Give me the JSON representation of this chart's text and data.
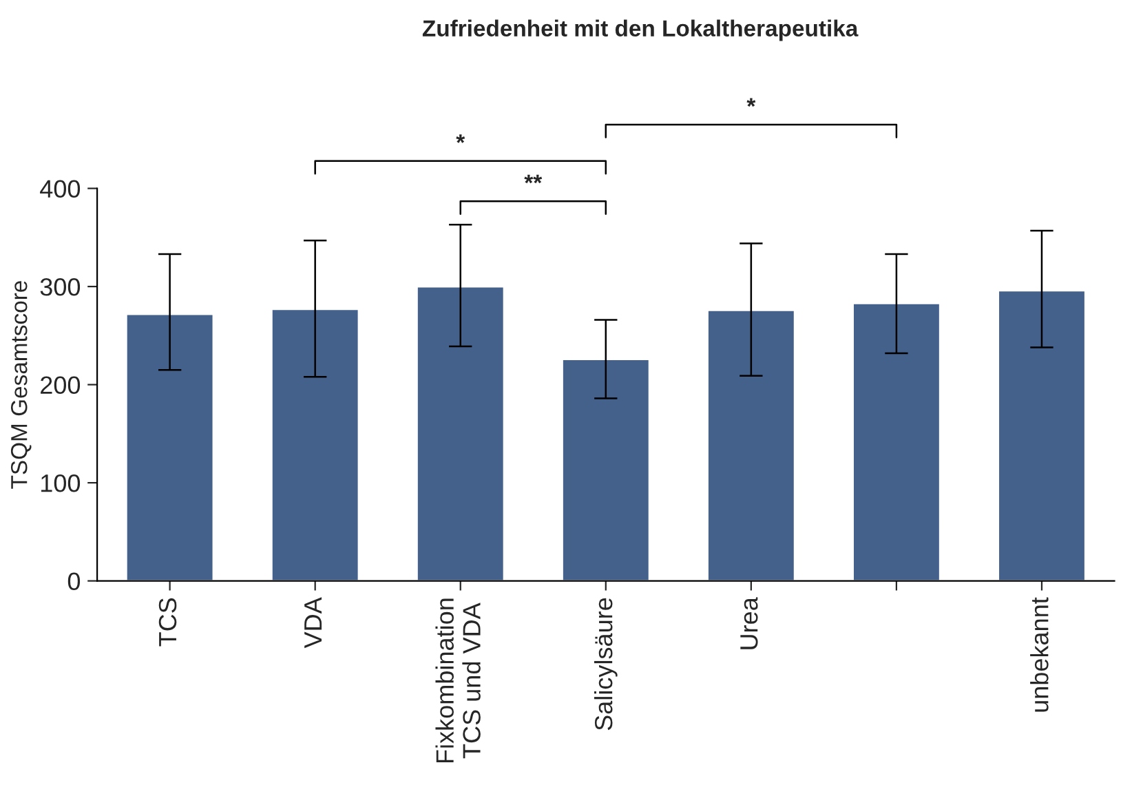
{
  "chart_data": {
    "type": "bar",
    "title": "Zufriedenheit mit den Lokaltherapeutika",
    "ylabel": "TSQM Gesamtscore",
    "categories": [
      "TCS",
      "VDA",
      "Fixkombination\nTCS und VDA",
      "Salicylsäure",
      "Urea",
      null,
      "unbekannt"
    ],
    "values": [
      272,
      277,
      300,
      226,
      276,
      283,
      296
    ],
    "errors": [
      [
        215,
        333
      ],
      [
        208,
        347
      ],
      [
        239,
        363
      ],
      [
        186,
        266
      ],
      [
        209,
        344
      ],
      [
        232,
        333
      ],
      [
        238,
        357
      ]
    ],
    "color": "#44618c",
    "ylim": [
      0,
      400
    ],
    "yticks": [
      0,
      100,
      200,
      300,
      400
    ],
    "grid": false,
    "legend": false,
    "annotations": [
      "*",
      "**",
      "*"
    ]
  }
}
